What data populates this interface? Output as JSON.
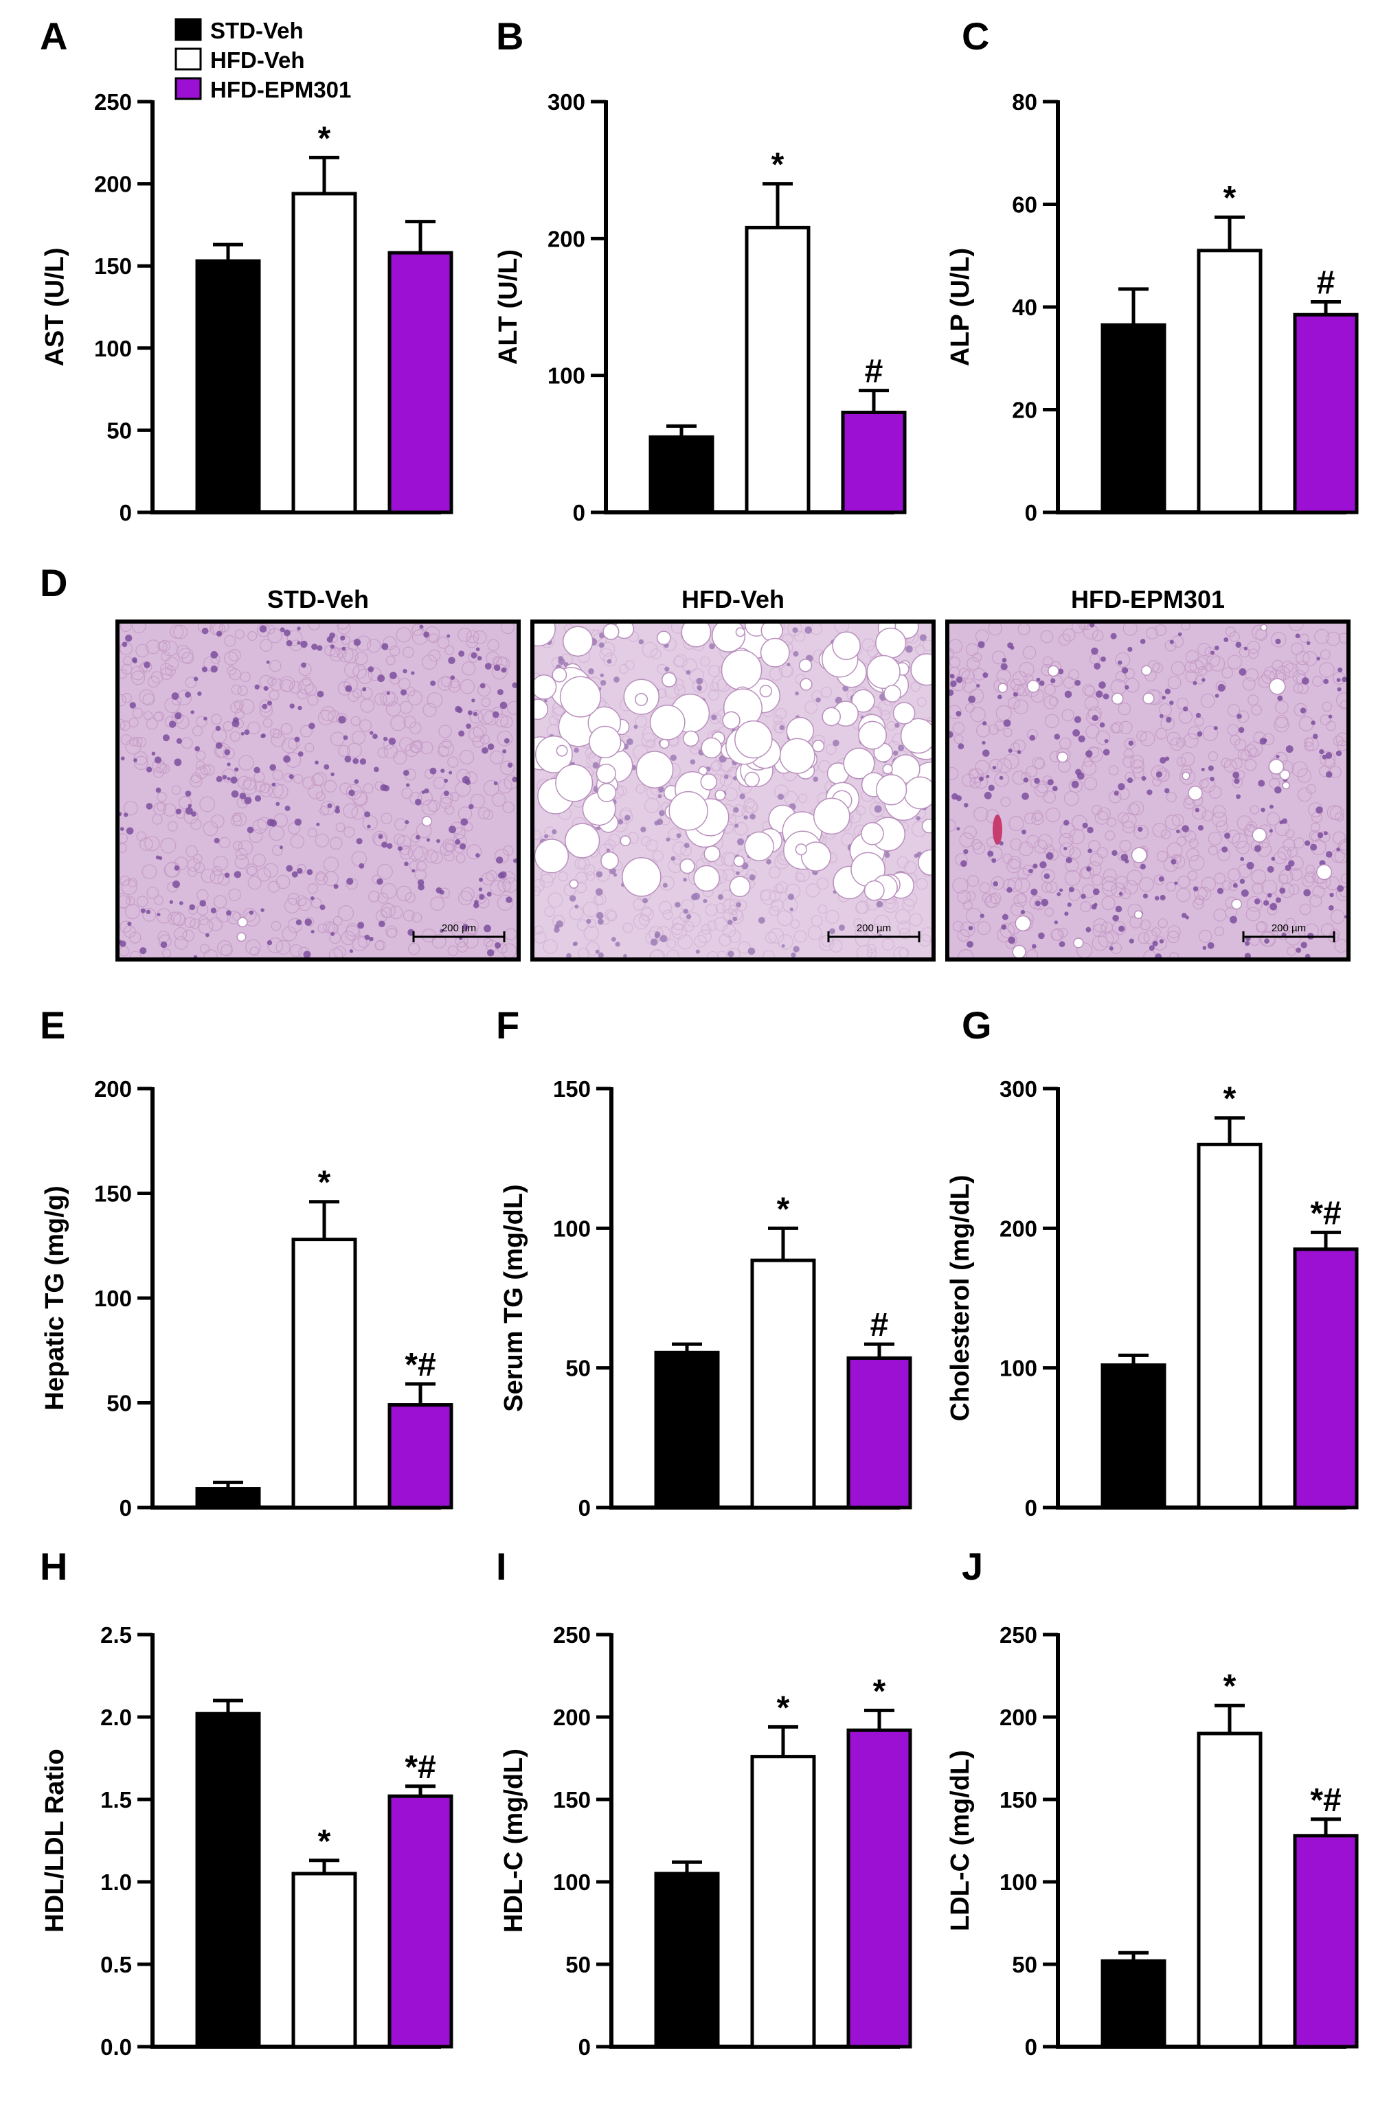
{
  "legend": {
    "items": [
      {
        "label": "STD-Veh",
        "color": "#000000"
      },
      {
        "label": "HFD-Veh",
        "color": "#ffffff"
      },
      {
        "label": "HFD-EPM301",
        "color": "#9b10d2"
      }
    ]
  },
  "colors": {
    "std": "#000000",
    "hfd": "#ffffff",
    "epm": "#9b10d2",
    "he_background": "#d9bcdb",
    "he_nuclei": "#7d4f9e"
  },
  "chart_data": [
    {
      "panel": "A",
      "type": "bar",
      "categories": [
        "STD-Veh",
        "HFD-Veh",
        "HFD-EPM301"
      ],
      "values": [
        153,
        194,
        158
      ],
      "errors": [
        10,
        22,
        19
      ],
      "marks": [
        "",
        "*",
        ""
      ],
      "ylabel": "AST (U/L)",
      "ylim": [
        0,
        250
      ],
      "yticks": [
        0,
        50,
        100,
        150,
        200,
        250
      ],
      "tick_labels": [
        "0",
        "50",
        "100",
        "150",
        "200",
        "250"
      ]
    },
    {
      "panel": "B",
      "type": "bar",
      "categories": [
        "STD-Veh",
        "HFD-Veh",
        "HFD-EPM301"
      ],
      "values": [
        55,
        208,
        73
      ],
      "errors": [
        8,
        32,
        16
      ],
      "marks": [
        "",
        "*",
        "#"
      ],
      "ylabel": "ALT (U/L)",
      "ylim": [
        0,
        300
      ],
      "yticks": [
        0,
        100,
        200,
        300
      ],
      "tick_labels": [
        "0",
        "100",
        "200",
        "300"
      ]
    },
    {
      "panel": "C",
      "type": "bar",
      "categories": [
        "STD-Veh",
        "HFD-Veh",
        "HFD-EPM301"
      ],
      "values": [
        36.5,
        51,
        38.5
      ],
      "errors": [
        7,
        6.5,
        2.5
      ],
      "marks": [
        "",
        "*",
        "#"
      ],
      "ylabel": "ALP (U/L)",
      "ylim": [
        0,
        80
      ],
      "yticks": [
        0,
        20,
        40,
        60,
        80
      ],
      "tick_labels": [
        "0",
        "20",
        "40",
        "60",
        "80"
      ]
    },
    {
      "panel": "E",
      "type": "bar",
      "categories": [
        "STD-Veh",
        "HFD-Veh",
        "HFD-EPM301"
      ],
      "values": [
        9,
        128,
        49
      ],
      "errors": [
        3,
        18,
        10
      ],
      "marks": [
        "",
        "*",
        "*#"
      ],
      "ylabel": "Hepatic TG (mg/g)",
      "ylim": [
        0,
        200
      ],
      "yticks": [
        0,
        50,
        100,
        150,
        200
      ],
      "tick_labels": [
        "0",
        "50",
        "100",
        "150",
        "200"
      ]
    },
    {
      "panel": "F",
      "type": "bar",
      "categories": [
        "STD-Veh",
        "HFD-Veh",
        "HFD-EPM301"
      ],
      "values": [
        55.5,
        88.5,
        53.5
      ],
      "errors": [
        3,
        11.5,
        5
      ],
      "marks": [
        "",
        "*",
        "#"
      ],
      "ylabel": "Serum TG (mg/dL)",
      "ylim": [
        0,
        150
      ],
      "yticks": [
        0,
        50,
        100,
        150
      ],
      "tick_labels": [
        "0",
        "50",
        "100",
        "150"
      ]
    },
    {
      "panel": "G",
      "type": "bar",
      "categories": [
        "STD-Veh",
        "HFD-Veh",
        "HFD-EPM301"
      ],
      "values": [
        102,
        260,
        185
      ],
      "errors": [
        7,
        19,
        12
      ],
      "marks": [
        "",
        "*",
        "*#"
      ],
      "ylabel": "Cholesterol (mg/dL)",
      "ylim": [
        0,
        300
      ],
      "yticks": [
        0,
        100,
        200,
        300
      ],
      "tick_labels": [
        "0",
        "100",
        "200",
        "300"
      ]
    },
    {
      "panel": "H",
      "type": "bar",
      "categories": [
        "STD-Veh",
        "HFD-Veh",
        "HFD-EPM301"
      ],
      "values": [
        2.02,
        1.05,
        1.52
      ],
      "errors": [
        0.08,
        0.08,
        0.06
      ],
      "marks": [
        "",
        "*",
        "*#"
      ],
      "ylabel": "HDL/LDL Ratio",
      "ylim": [
        0,
        2.5
      ],
      "yticks": [
        0,
        0.5,
        1.0,
        1.5,
        2.0,
        2.5
      ],
      "tick_labels": [
        "0.0",
        "0.5",
        "1.0",
        "1.5",
        "2.0",
        "2.5"
      ]
    },
    {
      "panel": "I",
      "type": "bar",
      "categories": [
        "STD-Veh",
        "HFD-Veh",
        "HFD-EPM301"
      ],
      "values": [
        105,
        176,
        192
      ],
      "errors": [
        7,
        18,
        12
      ],
      "marks": [
        "",
        "*",
        "*"
      ],
      "ylabel": "HDL-C (mg/dL)",
      "ylim": [
        0,
        250
      ],
      "yticks": [
        0,
        50,
        100,
        150,
        200,
        250
      ],
      "tick_labels": [
        "0",
        "50",
        "100",
        "150",
        "200",
        "250"
      ]
    },
    {
      "panel": "J",
      "type": "bar",
      "categories": [
        "STD-Veh",
        "HFD-Veh",
        "HFD-EPM301"
      ],
      "values": [
        52,
        190,
        128
      ],
      "errors": [
        5,
        17,
        10
      ],
      "marks": [
        "",
        "*",
        "*#"
      ],
      "ylabel": "LDL-C (mg/dL)",
      "ylim": [
        0,
        250
      ],
      "yticks": [
        0,
        50,
        100,
        150,
        200,
        250
      ],
      "tick_labels": [
        "0",
        "50",
        "100",
        "150",
        "200",
        "250"
      ]
    }
  ],
  "histology": {
    "panel": "D",
    "images": [
      {
        "title": "STD-Veh",
        "scale_bar": "200 µm",
        "fat_vacuoles": "none"
      },
      {
        "title": "HFD-Veh",
        "scale_bar": "200 µm",
        "fat_vacuoles": "many large"
      },
      {
        "title": "HFD-EPM301",
        "scale_bar": "200 µm",
        "fat_vacuoles": "few small"
      }
    ]
  }
}
